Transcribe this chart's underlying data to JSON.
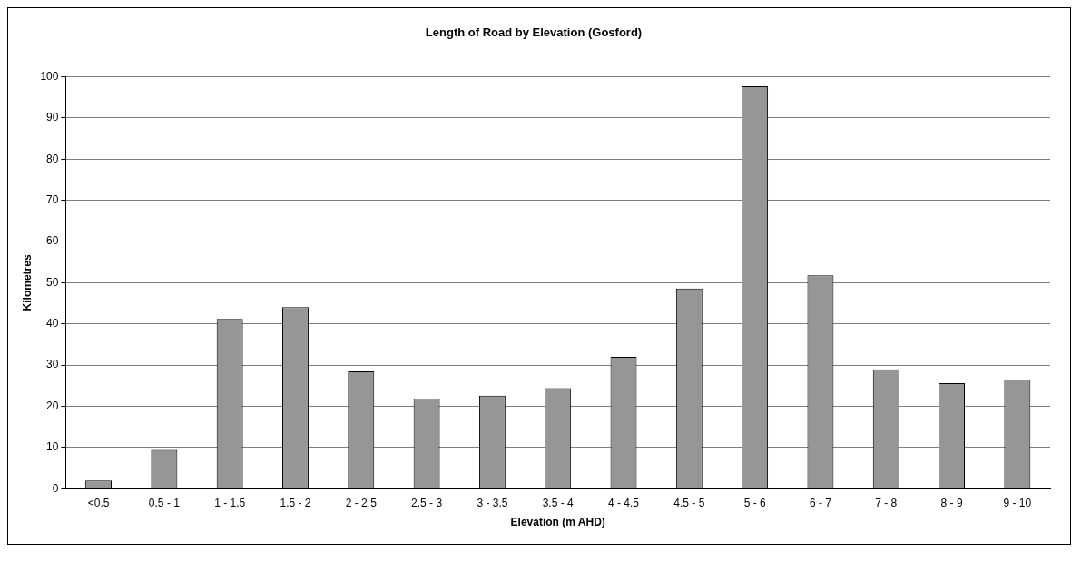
{
  "chart_data": {
    "type": "bar",
    "title": "Length of Road by Elevation (Gosford)",
    "xlabel": "Elevation (m AHD)",
    "ylabel": "Kilometres",
    "categories": [
      "<0.5",
      "0.5 - 1",
      "1 - 1.5",
      "1.5 - 2",
      "2 - 2.5",
      "2.5 - 3",
      "3 - 3.5",
      "3.5 - 4",
      "4 - 4.5",
      "4.5 - 5",
      "5 - 6",
      "6 - 7",
      "7 - 8",
      "8 - 9",
      "9 - 10"
    ],
    "values": [
      2,
      9.4,
      41.2,
      44.1,
      28.5,
      21.8,
      22.6,
      24.4,
      32,
      48.6,
      97.7,
      51.8,
      29,
      25.6,
      26.5
    ],
    "color": "#969696",
    "ylim": [
      0,
      100
    ],
    "yticks": [
      0,
      10,
      20,
      30,
      40,
      50,
      60,
      70,
      80,
      90,
      100
    ],
    "grid": "y",
    "legend": false
  }
}
